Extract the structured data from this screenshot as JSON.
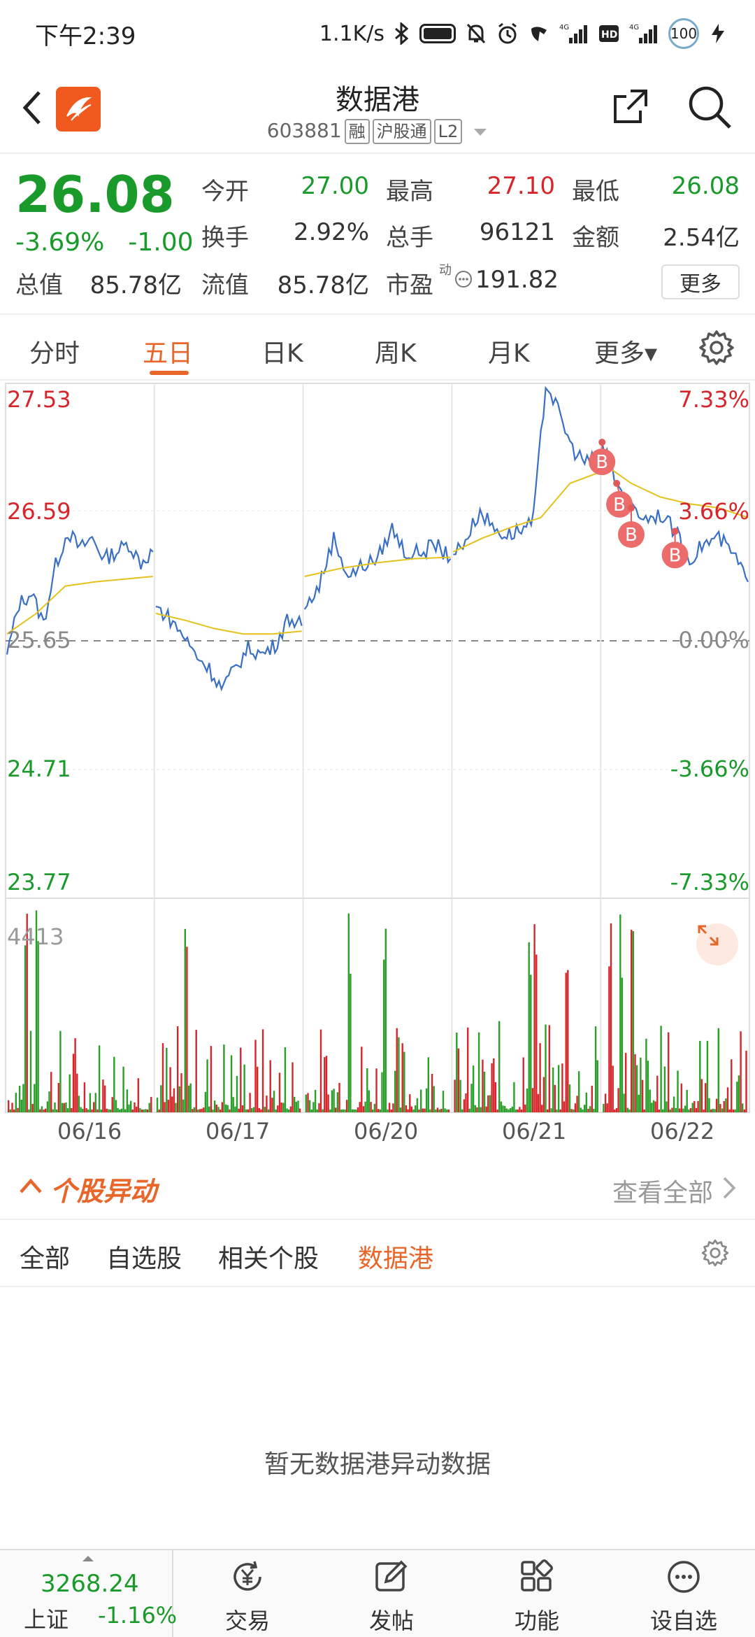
{
  "status_bar": {
    "time": "下午2:39",
    "net_speed": "1.1K/s",
    "signal_1": "4G",
    "signal_2": "4G",
    "battery": "100"
  },
  "header": {
    "title": "数据港",
    "code": "603881",
    "tags": [
      "融",
      "沪股通",
      "L2"
    ]
  },
  "quote": {
    "price": "26.08",
    "change_pct": "-3.69%",
    "change": "-1.00",
    "rows": [
      [
        {
          "label": "今开",
          "value": "27.00",
          "color": "green"
        },
        {
          "label": "最高",
          "value": "27.10",
          "color": "red"
        },
        {
          "label": "最低",
          "value": "26.08",
          "color": "green"
        }
      ],
      [
        {
          "label": "换手",
          "value": "2.92%",
          "color": "dark"
        },
        {
          "label": "总手",
          "value": "96121",
          "color": "dark"
        },
        {
          "label": "金额",
          "value": "2.54亿",
          "color": "dark"
        }
      ]
    ],
    "row3": {
      "total_label": "总值",
      "total_value": "85.78亿",
      "float_label": "流值",
      "float_value": "85.78亿",
      "pe_label": "市盈",
      "pe_super": "动",
      "pe_value": "191.82"
    },
    "more": "更多"
  },
  "tabs": [
    {
      "label": "分时",
      "active": false
    },
    {
      "label": "五日",
      "active": true
    },
    {
      "label": "日K",
      "active": false
    },
    {
      "label": "周K",
      "active": false
    },
    {
      "label": "月K",
      "active": false
    },
    {
      "label": "更多▾",
      "active": false
    }
  ],
  "chart_data": {
    "type": "line",
    "title": "",
    "price_axis": [
      "27.53",
      "26.59",
      "25.65",
      "24.71",
      "23.77"
    ],
    "pct_axis": [
      "7.33%",
      "3.66%",
      "0.00%",
      "-3.66%",
      "-7.33%"
    ],
    "ylim": [
      23.77,
      27.53
    ],
    "prev_close": 25.65,
    "x_labels": [
      "06/16",
      "06/17",
      "06/20",
      "06/21",
      "06/22"
    ],
    "volume_max_label": "4413",
    "series": [
      {
        "kind": "price",
        "color": "#3a6fc4",
        "days": [
          [
            25.55,
            25.92,
            26.0,
            25.78,
            26.2,
            26.45,
            26.32,
            26.4,
            26.25,
            26.3,
            26.36,
            26.22,
            26.3
          ],
          [
            25.9,
            25.82,
            25.7,
            25.55,
            25.45,
            25.3,
            25.45,
            25.6,
            25.55,
            25.62,
            25.82,
            25.76
          ],
          [
            25.88,
            26.05,
            26.4,
            26.12,
            26.2,
            26.25,
            26.47,
            26.28,
            26.3,
            26.35,
            26.25
          ],
          [
            26.28,
            26.4,
            26.6,
            26.48,
            26.42,
            26.46,
            26.5,
            27.55,
            27.3,
            27.05,
            26.95,
            27.0
          ],
          [
            27.1,
            26.8,
            26.62,
            26.55,
            26.58,
            26.45,
            26.25,
            26.36,
            26.4,
            26.28,
            26.08
          ]
        ]
      },
      {
        "kind": "avg",
        "color": "#e3c21b",
        "days": [
          [
            25.7,
            25.85,
            26.05,
            26.08,
            26.1,
            26.12
          ],
          [
            25.85,
            25.8,
            25.74,
            25.7,
            25.7,
            25.72
          ],
          [
            26.12,
            26.18,
            26.22,
            26.25,
            26.26
          ],
          [
            26.3,
            26.4,
            26.48,
            26.55,
            26.8,
            26.88
          ],
          [
            26.95,
            26.8,
            26.7,
            26.65,
            26.62,
            26.55
          ]
        ]
      }
    ],
    "buy_markers": [
      {
        "day": 4,
        "index": 0,
        "label": "B"
      },
      {
        "day": 4,
        "index": 1,
        "label": "B"
      },
      {
        "day": 4,
        "index": 2,
        "label": "B"
      },
      {
        "day": 4,
        "index": 5,
        "label": "B"
      }
    ]
  },
  "anomaly": {
    "title": "个股异动",
    "view_all": "查看全部",
    "tabs": [
      {
        "label": "全部",
        "active": false
      },
      {
        "label": "自选股",
        "active": false
      },
      {
        "label": "相关个股",
        "active": false
      },
      {
        "label": "数据港",
        "active": true
      }
    ],
    "empty": "暂无数据港异动数据"
  },
  "bottom_bar": {
    "index_value": "3268.24",
    "index_name": "上证",
    "index_change": "-1.16%",
    "nav": [
      {
        "label": "交易",
        "icon": "trade-icon"
      },
      {
        "label": "发帖",
        "icon": "post-icon"
      },
      {
        "label": "功能",
        "icon": "grid-icon"
      },
      {
        "label": "设自选",
        "icon": "more-icon"
      }
    ]
  }
}
